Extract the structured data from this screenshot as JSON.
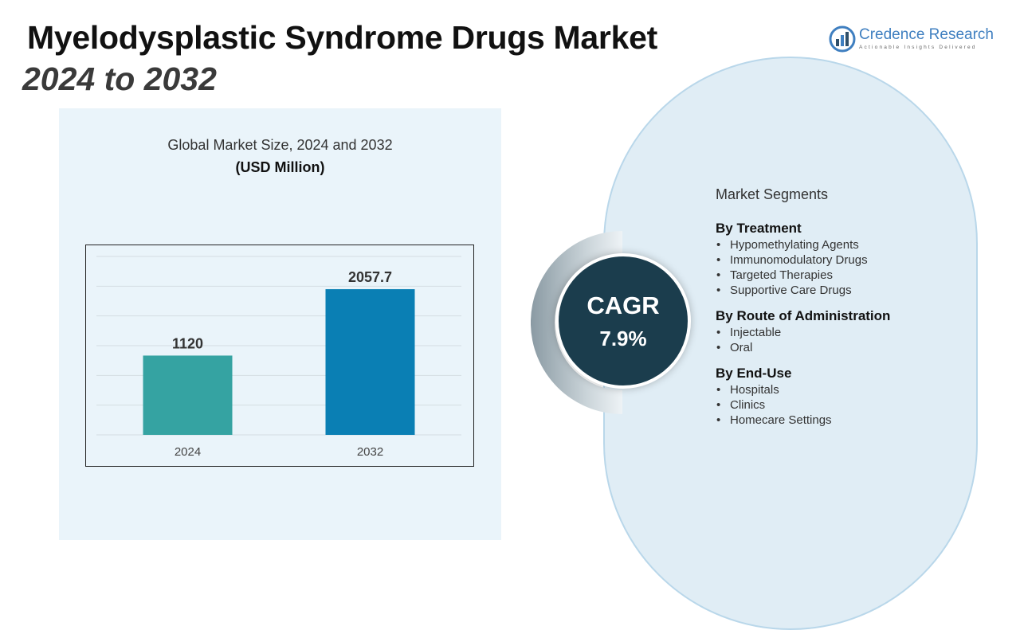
{
  "header": {
    "title": "Myelodysplastic Syndrome Drugs Market",
    "subtitle": "2024 to 2032"
  },
  "logo": {
    "name": "Credence Research",
    "tagline": "Actionable Insights Delivered",
    "icon": "bar-chart-logo-icon",
    "color": "#3f7fc0"
  },
  "chart_data": {
    "type": "bar",
    "title": "Global Market Size, 2024 and 2032",
    "unit": "(USD Million)",
    "categories": [
      "2024",
      "2032"
    ],
    "values": [
      1120,
      2057.7
    ],
    "value_labels": [
      "1120",
      "2057.7"
    ],
    "colors": [
      "#35a3a2",
      "#0a7fb4"
    ],
    "ylim": [
      0,
      2520
    ],
    "grid": true,
    "legend": "none"
  },
  "cagr": {
    "label": "CAGR",
    "value": "7.9%"
  },
  "segments": {
    "title": "Market Segments",
    "groups": [
      {
        "heading": "By Treatment",
        "items": [
          "Hypomethylating Agents",
          "Immunomodulatory Drugs",
          "Targeted Therapies",
          "Supportive Care Drugs"
        ]
      },
      {
        "heading": "By Route of Administration",
        "items": [
          "Injectable",
          "Oral"
        ]
      },
      {
        "heading": "By End-Use",
        "items": [
          "Hospitals",
          "Clinics",
          "Homecare Settings"
        ]
      }
    ]
  }
}
